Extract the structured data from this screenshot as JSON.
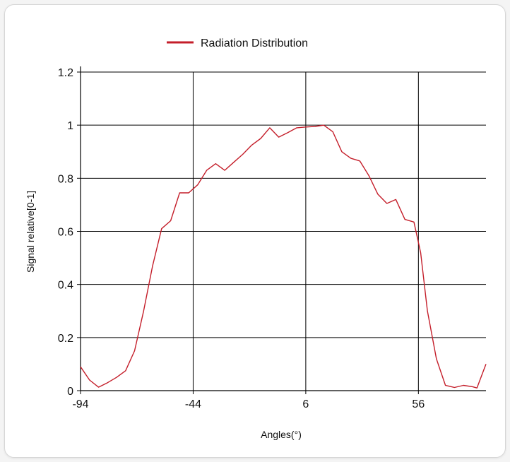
{
  "chart_data": {
    "type": "line",
    "xlabel": "Angles(°)",
    "ylabel": "Signal relative[0-1]",
    "xlim": [
      -94,
      86
    ],
    "ylim": [
      0,
      1.2
    ],
    "x_ticks": [
      "-94",
      "-44",
      "6",
      "56"
    ],
    "y_ticks": [
      "0",
      "0.2",
      "0.4",
      "0.6",
      "0.8",
      "1",
      "1.2"
    ],
    "grid": true,
    "legend_position": "top-center",
    "series": [
      {
        "name": "Radiation Distribution",
        "color": "#c41e2a",
        "points": [
          [
            -94,
            0.09
          ],
          [
            -90,
            0.04
          ],
          [
            -86,
            0.013
          ],
          [
            -82,
            0.03
          ],
          [
            -78,
            0.05
          ],
          [
            -74,
            0.075
          ],
          [
            -70,
            0.15
          ],
          [
            -66,
            0.3
          ],
          [
            -62,
            0.47
          ],
          [
            -58,
            0.61
          ],
          [
            -54,
            0.64
          ],
          [
            -50,
            0.745
          ],
          [
            -46,
            0.745
          ],
          [
            -42,
            0.775
          ],
          [
            -38,
            0.83
          ],
          [
            -34,
            0.855
          ],
          [
            -30,
            0.83
          ],
          [
            -26,
            0.86
          ],
          [
            -22,
            0.89
          ],
          [
            -18,
            0.925
          ],
          [
            -14,
            0.95
          ],
          [
            -10,
            0.99
          ],
          [
            -6,
            0.955
          ],
          [
            -2,
            0.972
          ],
          [
            2,
            0.99
          ],
          [
            6,
            0.993
          ],
          [
            10,
            0.995
          ],
          [
            14,
            1.0
          ],
          [
            18,
            0.975
          ],
          [
            22,
            0.9
          ],
          [
            26,
            0.875
          ],
          [
            30,
            0.865
          ],
          [
            34,
            0.81
          ],
          [
            38,
            0.74
          ],
          [
            42,
            0.705
          ],
          [
            46,
            0.72
          ],
          [
            50,
            0.645
          ],
          [
            54,
            0.635
          ],
          [
            57,
            0.52
          ],
          [
            60,
            0.3
          ],
          [
            64,
            0.12
          ],
          [
            68,
            0.02
          ],
          [
            72,
            0.012
          ],
          [
            76,
            0.02
          ],
          [
            80,
            0.015
          ],
          [
            82,
            0.01
          ],
          [
            86,
            0.1
          ]
        ]
      }
    ]
  }
}
